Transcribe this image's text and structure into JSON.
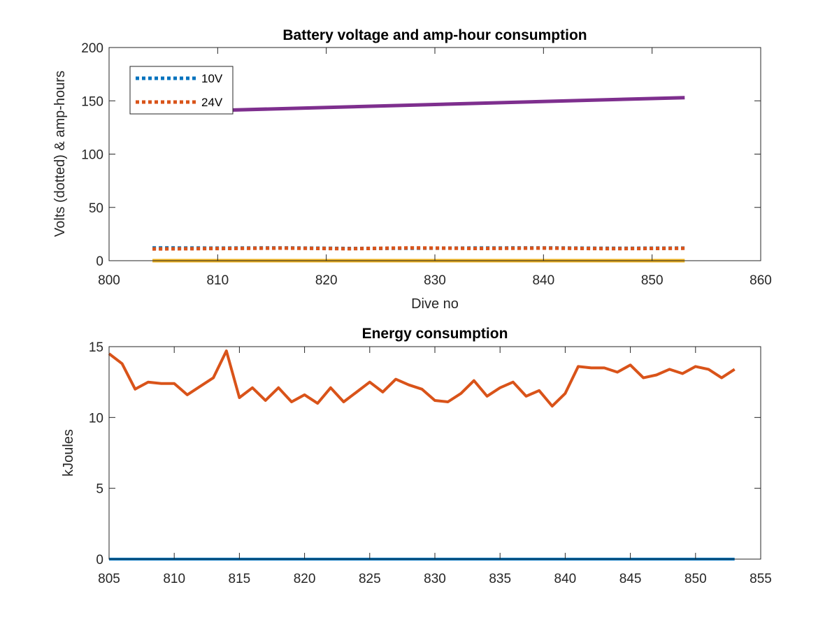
{
  "chart_data": [
    {
      "type": "line",
      "title": "Battery voltage and amp-hour consumption",
      "xlabel": "Dive no",
      "ylabel": "Volts (dotted) & amp-hours",
      "xlim": [
        800,
        860
      ],
      "ylim": [
        0,
        200
      ],
      "xticks": [
        800,
        810,
        820,
        830,
        840,
        850,
        860
      ],
      "yticks": [
        0,
        50,
        100,
        150,
        200
      ],
      "grid": false,
      "legend": {
        "position": "top-left",
        "entries": [
          "10V",
          "24V"
        ]
      },
      "series": [
        {
          "name": "10V",
          "color": "#0072BD",
          "style": "dotted",
          "x": [
            804,
            810,
            816,
            822,
            828,
            834,
            840,
            846,
            853
          ],
          "y": [
            12,
            11.8,
            12,
            11.5,
            11.7,
            11.9,
            12,
            11.6,
            11.8
          ]
        },
        {
          "name": "24V",
          "color": "#D95319",
          "style": "dotted",
          "x": [
            804,
            810,
            816,
            822,
            828,
            834,
            840,
            846,
            853
          ],
          "y": [
            11,
            11.4,
            11.8,
            11.2,
            12,
            11.5,
            11.8,
            11.3,
            11.6
          ]
        },
        {
          "color": "#EDB120",
          "style": "solid",
          "x": [
            804,
            853
          ],
          "y": [
            0,
            0
          ]
        },
        {
          "color": "#7E2F8E",
          "style": "solid",
          "x": [
            810,
            853
          ],
          "y": [
            141,
            153
          ]
        }
      ]
    },
    {
      "type": "line",
      "title": "Energy consumption",
      "xlabel": "",
      "ylabel": "kJoules",
      "xlim": [
        805,
        855
      ],
      "ylim": [
        0,
        15
      ],
      "xticks": [
        805,
        810,
        815,
        820,
        825,
        830,
        835,
        840,
        845,
        850,
        855
      ],
      "yticks": [
        0,
        5,
        10,
        15
      ],
      "grid": false,
      "series": [
        {
          "color": "#0072BD",
          "style": "solid",
          "x": [
            805,
            853
          ],
          "y": [
            0,
            0
          ]
        },
        {
          "color": "#D95319",
          "style": "solid",
          "x": [
            805,
            806,
            807,
            808,
            809,
            810,
            811,
            812,
            813,
            814,
            815,
            816,
            817,
            818,
            819,
            820,
            821,
            822,
            823,
            824,
            825,
            826,
            827,
            828,
            829,
            830,
            831,
            832,
            833,
            834,
            835,
            836,
            837,
            838,
            839,
            840,
            841,
            842,
            843,
            844,
            845,
            846,
            847,
            848,
            849,
            850,
            851,
            852,
            853
          ],
          "y": [
            14.5,
            13.8,
            12.0,
            12.5,
            12.4,
            12.4,
            11.6,
            12.2,
            12.8,
            14.7,
            11.4,
            12.1,
            11.2,
            12.1,
            11.1,
            11.6,
            11.0,
            12.1,
            11.1,
            11.8,
            12.5,
            11.8,
            12.7,
            12.3,
            12.0,
            11.2,
            11.1,
            11.7,
            12.6,
            11.5,
            12.1,
            12.5,
            11.5,
            11.9,
            10.8,
            11.7,
            13.6,
            13.5,
            13.5,
            13.2,
            13.7,
            12.8,
            13.0,
            13.4,
            13.1,
            13.6,
            13.4,
            12.8,
            13.4
          ]
        }
      ]
    }
  ]
}
